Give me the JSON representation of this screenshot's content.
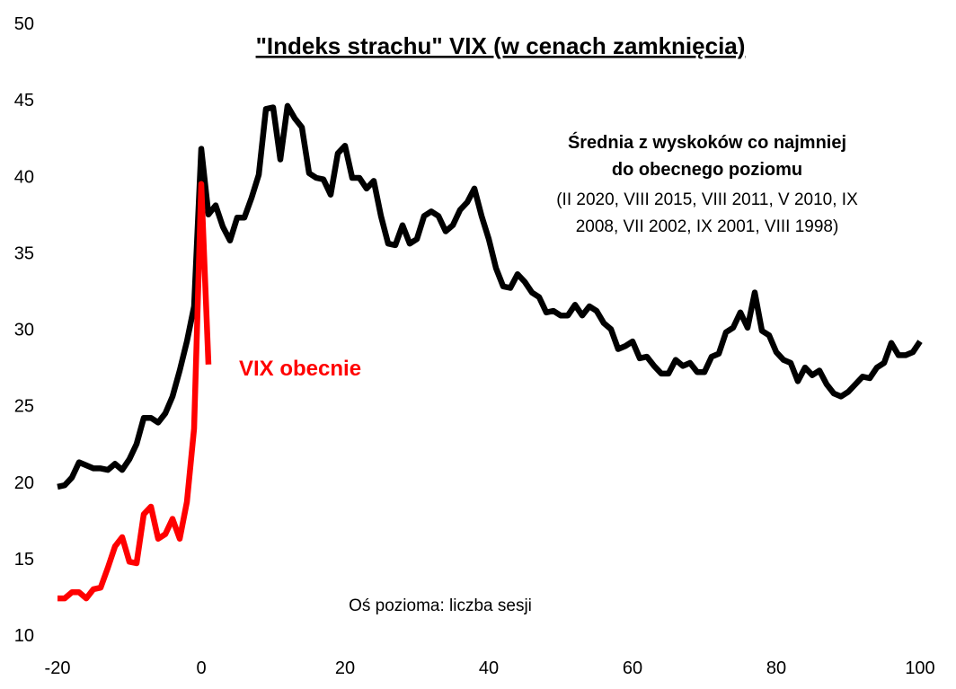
{
  "chart_data": {
    "type": "line",
    "title": "\"Indeks strachu\" VIX (w cenach zamknięcia)",
    "xlabel": "Oś pozioma: liczba sesji",
    "ylabel": "",
    "xlim": [
      -20,
      100
    ],
    "ylim": [
      10,
      50
    ],
    "x_ticks": [
      "-20",
      "0",
      "20",
      "40",
      "60",
      "80",
      "100"
    ],
    "y_ticks": [
      "10",
      "15",
      "20",
      "25",
      "30",
      "35",
      "40",
      "45",
      "50"
    ],
    "grid": false,
    "annotations": {
      "average_title_line1": "Średnia z wyskoków co najmniej",
      "average_title_line2": "do obecnego poziomu",
      "average_detail_line1": "(II 2020, VIII 2015, VIII 2011, V 2010, IX",
      "average_detail_line2": "2008, VII 2002, IX 2001, VIII 1998)",
      "current_label": "VIX obecnie"
    },
    "series": [
      {
        "name": "Średnia z wyskoków",
        "color": "#000000",
        "x_start": -20,
        "values": [
          19.7,
          19.8,
          20.3,
          21.3,
          21.1,
          20.9,
          20.9,
          20.8,
          21.2,
          20.8,
          21.5,
          22.5,
          24.2,
          24.2,
          23.9,
          24.5,
          25.6,
          27.3,
          29.2,
          31.5,
          41.8,
          37.5,
          38.1,
          36.7,
          35.8,
          37.3,
          37.3,
          38.6,
          40.1,
          44.4,
          44.5,
          41.1,
          44.6,
          43.8,
          43.2,
          40.2,
          39.9,
          39.8,
          38.8,
          41.5,
          42.0,
          39.9,
          39.9,
          39.2,
          39.7,
          37.4,
          35.6,
          35.5,
          36.8,
          35.6,
          35.9,
          37.4,
          37.7,
          37.4,
          36.4,
          36.8,
          37.8,
          38.3,
          39.2,
          37.4,
          35.9,
          34.0,
          32.8,
          32.7,
          33.6,
          33.1,
          32.4,
          32.1,
          31.1,
          31.2,
          30.9,
          30.9,
          31.6,
          30.9,
          31.5,
          31.2,
          30.4,
          30.0,
          28.7,
          28.9,
          29.2,
          28.1,
          28.2,
          27.6,
          27.1,
          27.1,
          28.0,
          27.6,
          27.8,
          27.2,
          27.2,
          28.2,
          28.4,
          29.8,
          30.1,
          31.1,
          30.1,
          32.4,
          29.9,
          29.6,
          28.5,
          28.0,
          27.8,
          26.6,
          27.5,
          27.0,
          27.3,
          26.4,
          25.8,
          25.6,
          25.9,
          26.4,
          26.9,
          26.8,
          27.5,
          27.8,
          29.1,
          28.3,
          28.3,
          28.5,
          29.2
        ]
      },
      {
        "name": "VIX obecnie",
        "color": "#ff0000",
        "x_start": -20,
        "values": [
          12.4,
          12.4,
          12.8,
          12.8,
          12.4,
          13.0,
          13.1,
          14.4,
          15.8,
          16.4,
          14.8,
          14.7,
          17.9,
          18.4,
          16.3,
          16.6,
          17.6,
          16.3,
          18.7,
          23.5,
          39.5,
          27.7
        ]
      }
    ]
  }
}
